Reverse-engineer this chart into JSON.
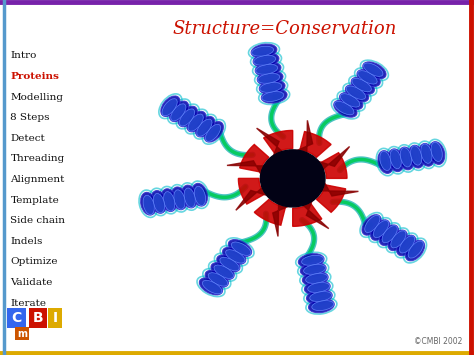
{
  "title": "Structure=Conservation",
  "title_color": "#cc1100",
  "title_fontsize": 13,
  "bg_color": "#ffffff",
  "border_top_color": "#7722aa",
  "border_bottom_color": "#ddaa00",
  "border_left_color": "#5599cc",
  "border_right_color": "#cc1100",
  "nav_items": [
    "Intro",
    "Proteins",
    "Modelling",
    "8 Steps",
    "Detect",
    "Threading",
    "Alignment",
    "Template",
    "Side chain",
    "Indels",
    "Optimize",
    "Validate",
    "Iterate"
  ],
  "nav_active": "Proteins",
  "nav_active_color": "#cc1100",
  "nav_inactive_color": "#111111",
  "nav_fontsize": 7.5,
  "copyright_text": "©CMBI 2002",
  "copyright_color": "#666666",
  "copyright_fontsize": 5.5,
  "img_bg": "#020215",
  "ring_color": "#cc0000",
  "ring_r": 0.32,
  "n_helices": 8,
  "helix_color_outer": "#2222dd",
  "helix_color_inner": "#4466ff",
  "loop_color_green": "#00dd55",
  "loop_color_cyan": "#00cccc",
  "arrow_color": "#cc0000",
  "arrow_dark": "#660000"
}
